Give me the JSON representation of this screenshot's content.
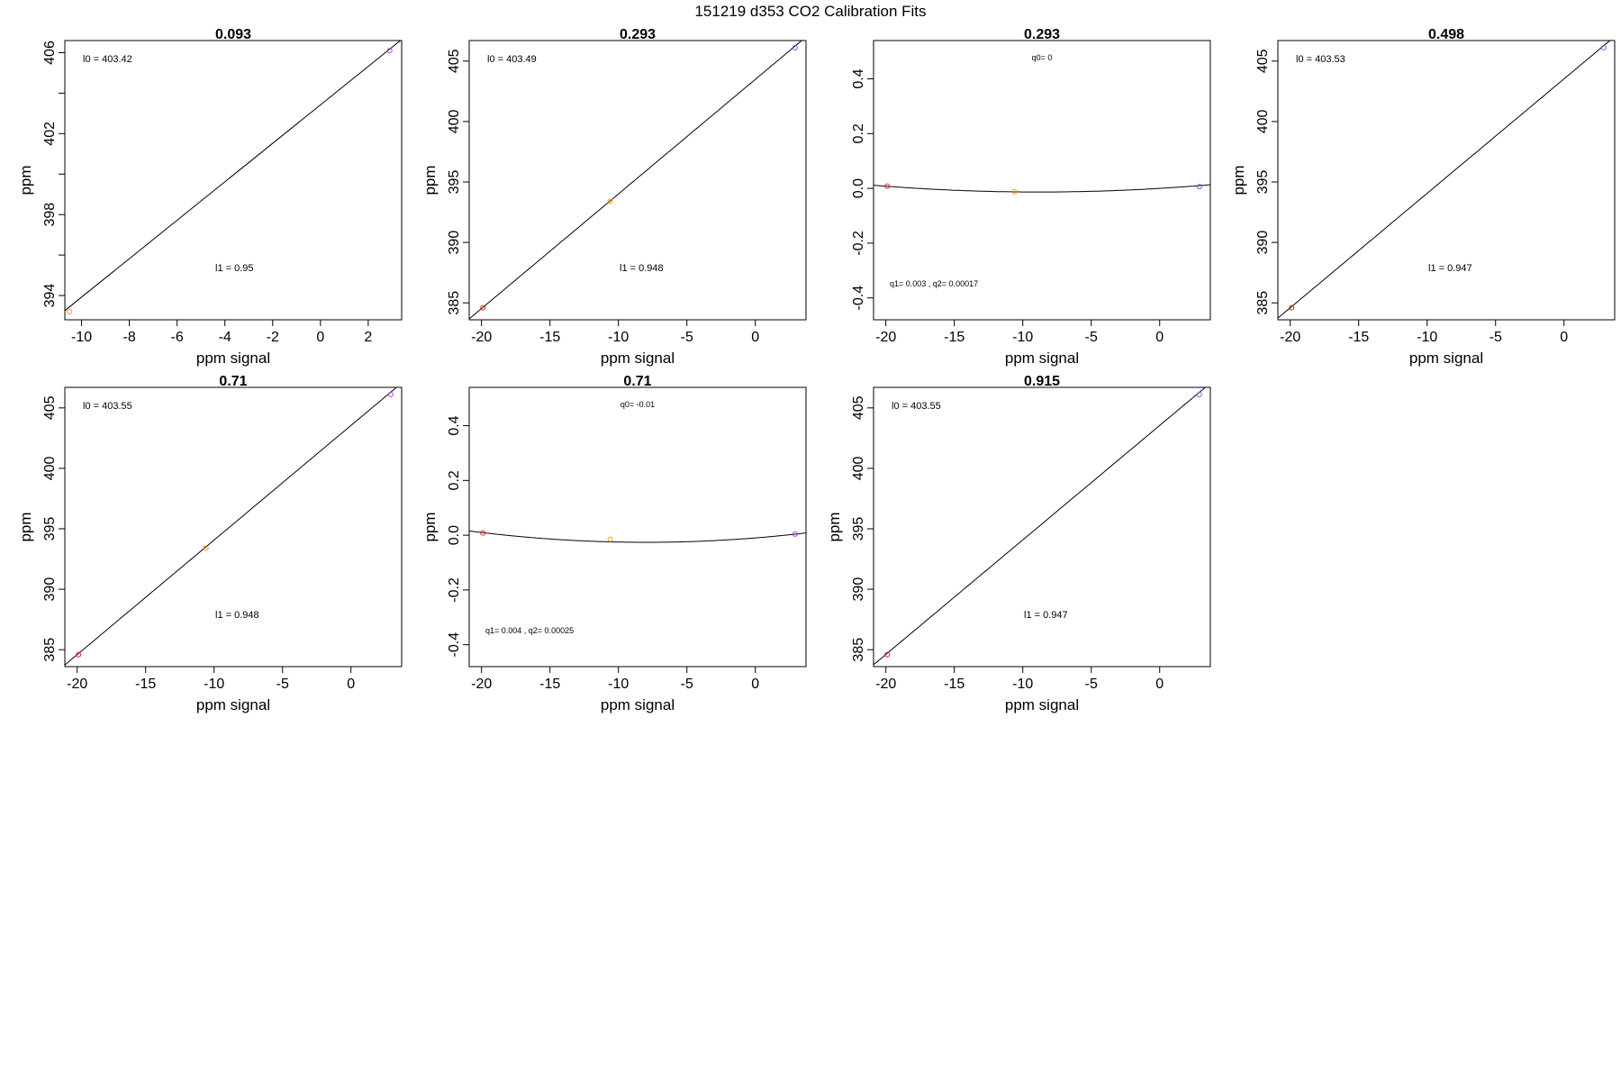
{
  "figure": {
    "title": "151219   d353   CO2 Calibration Fits"
  },
  "colors": {
    "low_std": "#e41a1c",
    "mid_std": "#ff9900",
    "high_std": "#a040e0",
    "line": "#000000"
  },
  "chart_data": [
    {
      "type": "scatter",
      "title": "0.093",
      "xlabel": "ppm signal",
      "ylabel": "ppm",
      "xlim": [
        -10.7,
        3.4
      ],
      "ylim": [
        392.8,
        406.6
      ],
      "xticks": [
        "-10",
        "-8",
        "-6",
        "-4",
        "-2",
        "0",
        "2"
      ],
      "xtick_values": [
        -10,
        -8,
        -6,
        -4,
        -2,
        0,
        2
      ],
      "yticks": [
        "394",
        "398",
        "402",
        "406"
      ],
      "ytick_values": [
        394,
        398,
        402,
        406
      ],
      "yminor": [
        396,
        400,
        404
      ],
      "points": [
        {
          "x": -10.5,
          "y": 393.2,
          "color": "mid_std"
        },
        {
          "x": 2.9,
          "y": 406.1,
          "color": "high_std"
        }
      ],
      "fit": {
        "kind": "linear",
        "intercept": 403.42,
        "slope": 0.95
      },
      "annotations": [
        {
          "text": "l0 =  403.42",
          "pos": "top-left"
        },
        {
          "text": "l1 =  0.95",
          "pos": "lower-middle"
        }
      ]
    },
    {
      "type": "scatter",
      "title": "0.293",
      "xlabel": "ppm signal",
      "ylabel": "ppm",
      "xlim": [
        -20.9,
        3.7
      ],
      "ylim": [
        383.6,
        406.7
      ],
      "xticks": [
        "-20",
        "-15",
        "-10",
        "-5",
        "0"
      ],
      "xtick_values": [
        -20,
        -15,
        -10,
        -5,
        0
      ],
      "yticks": [
        "385",
        "390",
        "395",
        "400",
        "405"
      ],
      "ytick_values": [
        385,
        390,
        395,
        400,
        405
      ],
      "yminor": [],
      "points": [
        {
          "x": -19.9,
          "y": 384.6,
          "color": "low_std"
        },
        {
          "x": -10.6,
          "y": 393.4,
          "color": "mid_std"
        },
        {
          "x": 2.9,
          "y": 406.1,
          "color": "high_std"
        }
      ],
      "fit": {
        "kind": "linear",
        "intercept": 403.49,
        "slope": 0.948
      },
      "annotations": [
        {
          "text": "l0 =  403.49",
          "pos": "top-left"
        },
        {
          "text": "l1 =  0.948",
          "pos": "lower-middle"
        }
      ]
    },
    {
      "type": "scatter",
      "title": "0.293",
      "xlabel": "ppm signal",
      "ylabel": "",
      "xlim": [
        -20.9,
        3.7
      ],
      "ylim": [
        -0.48,
        0.54
      ],
      "xticks": [
        "-20",
        "-15",
        "-10",
        "-5",
        "0"
      ],
      "xtick_values": [
        -20,
        -15,
        -10,
        -5,
        0
      ],
      "yticks": [
        "-0.4",
        "-0.2",
        "0.0",
        "0.2",
        "0.4"
      ],
      "ytick_values": [
        -0.4,
        -0.2,
        0.0,
        0.2,
        0.4
      ],
      "yminor": [],
      "points": [
        {
          "x": -19.9,
          "y": 0.008,
          "color": "low_std"
        },
        {
          "x": -10.6,
          "y": -0.012,
          "color": "mid_std"
        },
        {
          "x": 2.9,
          "y": 0.006,
          "color": "high_std"
        }
      ],
      "fit": {
        "kind": "quadratic",
        "q0": 0,
        "q1": 0.003,
        "q2": 0.00017
      },
      "annotations": [
        {
          "text": "q0= 0",
          "pos": "top-center",
          "small": true
        },
        {
          "text": "q1= 0.003 , q2= 0.00017",
          "pos": "bottom-left",
          "small": true
        }
      ]
    },
    {
      "type": "scatter",
      "title": "0.498",
      "xlabel": "ppm signal",
      "ylabel": "ppm",
      "xlim": [
        -20.9,
        3.7
      ],
      "ylim": [
        383.6,
        406.7
      ],
      "xticks": [
        "-20",
        "-15",
        "-10",
        "-5",
        "0"
      ],
      "xtick_values": [
        -20,
        -15,
        -10,
        -5,
        0
      ],
      "yticks": [
        "385",
        "390",
        "395",
        "400",
        "405"
      ],
      "ytick_values": [
        385,
        390,
        395,
        400,
        405
      ],
      "yminor": [],
      "points": [
        {
          "x": -19.9,
          "y": 384.6,
          "color": "low_std"
        },
        {
          "x": 2.9,
          "y": 406.1,
          "color": "high_std"
        }
      ],
      "fit": {
        "kind": "linear",
        "intercept": 403.53,
        "slope": 0.947
      },
      "annotations": [
        {
          "text": "l0 =  403.53",
          "pos": "top-left"
        },
        {
          "text": "l1 =  0.947",
          "pos": "lower-middle"
        }
      ]
    },
    {
      "type": "scatter",
      "title": "0.71",
      "xlabel": "ppm signal",
      "ylabel": "ppm",
      "xlim": [
        -20.9,
        3.7
      ],
      "ylim": [
        383.6,
        406.7
      ],
      "xticks": [
        "-20",
        "-15",
        "-10",
        "-5",
        "0"
      ],
      "xtick_values": [
        -20,
        -15,
        -10,
        -5,
        0
      ],
      "yticks": [
        "385",
        "390",
        "395",
        "400",
        "405"
      ],
      "ytick_values": [
        385,
        390,
        395,
        400,
        405
      ],
      "yminor": [],
      "points": [
        {
          "x": -19.9,
          "y": 384.6,
          "color": "low_std"
        },
        {
          "x": -10.6,
          "y": 393.4,
          "color": "mid_std"
        },
        {
          "x": 2.9,
          "y": 406.1,
          "color": "high_std"
        }
      ],
      "fit": {
        "kind": "linear",
        "intercept": 403.55,
        "slope": 0.948
      },
      "annotations": [
        {
          "text": "l0 =  403.55",
          "pos": "top-left"
        },
        {
          "text": "l1 =  0.948",
          "pos": "lower-middle"
        }
      ]
    },
    {
      "type": "scatter",
      "title": "0.71",
      "xlabel": "ppm signal",
      "ylabel": "ppm",
      "xlim": [
        -20.9,
        3.7
      ],
      "ylim": [
        -0.48,
        0.54
      ],
      "xticks": [
        "-20",
        "-15",
        "-10",
        "-5",
        "0"
      ],
      "xtick_values": [
        -20,
        -15,
        -10,
        -5,
        0
      ],
      "yticks": [
        "-0.4",
        "-0.2",
        "0.0",
        "0.2",
        "0.4"
      ],
      "ytick_values": [
        -0.4,
        -0.2,
        0.0,
        0.2,
        0.4
      ],
      "yminor": [],
      "points": [
        {
          "x": -19.9,
          "y": 0.008,
          "color": "low_std"
        },
        {
          "x": -10.6,
          "y": -0.015,
          "color": "mid_std"
        },
        {
          "x": 2.9,
          "y": 0.004,
          "color": "high_std"
        }
      ],
      "fit": {
        "kind": "quadratic",
        "q0": -0.01,
        "q1": 0.004,
        "q2": 0.00025
      },
      "annotations": [
        {
          "text": "q0= -0.01",
          "pos": "top-center",
          "small": true
        },
        {
          "text": "q1= 0.004 , q2= 0.00025",
          "pos": "bottom-left",
          "small": true
        }
      ]
    },
    {
      "type": "scatter",
      "title": "0.915",
      "xlabel": "ppm signal",
      "ylabel": "ppm",
      "xlim": [
        -20.9,
        3.7
      ],
      "ylim": [
        383.6,
        406.7
      ],
      "xticks": [
        "-20",
        "-15",
        "-10",
        "-5",
        "0"
      ],
      "xtick_values": [
        -20,
        -15,
        -10,
        -5,
        0
      ],
      "yticks": [
        "385",
        "390",
        "395",
        "400",
        "405"
      ],
      "ytick_values": [
        385,
        390,
        395,
        400,
        405
      ],
      "yminor": [],
      "points": [
        {
          "x": -19.9,
          "y": 384.6,
          "color": "low_std"
        },
        {
          "x": 2.9,
          "y": 406.1,
          "color": "high_std"
        }
      ],
      "fit": {
        "kind": "linear",
        "intercept": 403.55,
        "slope": 0.947
      },
      "annotations": [
        {
          "text": "l0 =  403.55",
          "pos": "top-left"
        },
        {
          "text": "l1 =  0.947",
          "pos": "lower-middle"
        }
      ]
    }
  ]
}
